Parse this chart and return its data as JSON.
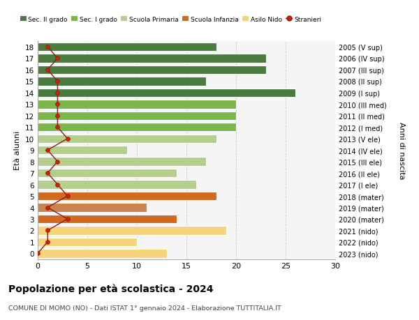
{
  "ages": [
    18,
    17,
    16,
    15,
    14,
    13,
    12,
    11,
    10,
    9,
    8,
    7,
    6,
    5,
    4,
    3,
    2,
    1,
    0
  ],
  "years_labels": [
    "2005 (V sup)",
    "2006 (IV sup)",
    "2007 (III sup)",
    "2008 (II sup)",
    "2009 (I sup)",
    "2010 (III med)",
    "2011 (II med)",
    "2012 (I med)",
    "2013 (V ele)",
    "2014 (IV ele)",
    "2015 (III ele)",
    "2016 (II ele)",
    "2017 (I ele)",
    "2018 (mater)",
    "2019 (mater)",
    "2020 (mater)",
    "2021 (nido)",
    "2022 (nido)",
    "2023 (nido)"
  ],
  "bar_values": [
    18,
    23,
    23,
    17,
    26,
    20,
    20,
    20,
    18,
    9,
    17,
    14,
    16,
    18,
    11,
    14,
    19,
    10,
    13
  ],
  "bar_colors": [
    "#4a7c3f",
    "#4a7c3f",
    "#4a7c3f",
    "#4a7c3f",
    "#4a7c3f",
    "#7ab648",
    "#7ab648",
    "#7ab648",
    "#b5ce8e",
    "#b5ce8e",
    "#b5ce8e",
    "#b5ce8e",
    "#b5ce8e",
    "#d2691e",
    "#c8844a",
    "#d2691e",
    "#f5d47a",
    "#f5d47a",
    "#f5d47a"
  ],
  "stranieri_values": [
    1,
    2,
    1,
    2,
    2,
    2,
    2,
    2,
    3,
    1,
    2,
    1,
    2,
    3,
    1,
    3,
    1,
    1,
    0
  ],
  "legend_labels": [
    "Sec. II grado",
    "Sec. I grado",
    "Scuola Primaria",
    "Scuola Infanzia",
    "Asilo Nido",
    "Stranieri"
  ],
  "legend_colors": [
    "#4a7c3f",
    "#7ab648",
    "#b5ce8e",
    "#d2691e",
    "#f5d47a",
    "#cc2200"
  ],
  "title": "Popolazione per età scolastica - 2024",
  "subtitle": "COMUNE DI MOMO (NO) - Dati ISTAT 1° gennaio 2024 - Elaborazione TUTTITALIA.IT",
  "ylabel_left": "Età alunni",
  "ylabel_right": "Anni di nascita",
  "xlim": [
    0,
    30
  ],
  "ylim_min": -0.5,
  "ylim_max": 18.5,
  "xticks": [
    0,
    5,
    10,
    15,
    20,
    25,
    30
  ],
  "background_color": "#ffffff",
  "plot_bg_color": "#f5f5f5",
  "grid_color": "#cccccc",
  "bar_height": 0.75,
  "stranieri_line_color": "#8b1a1a",
  "stranieri_dot_color": "#cc2200"
}
